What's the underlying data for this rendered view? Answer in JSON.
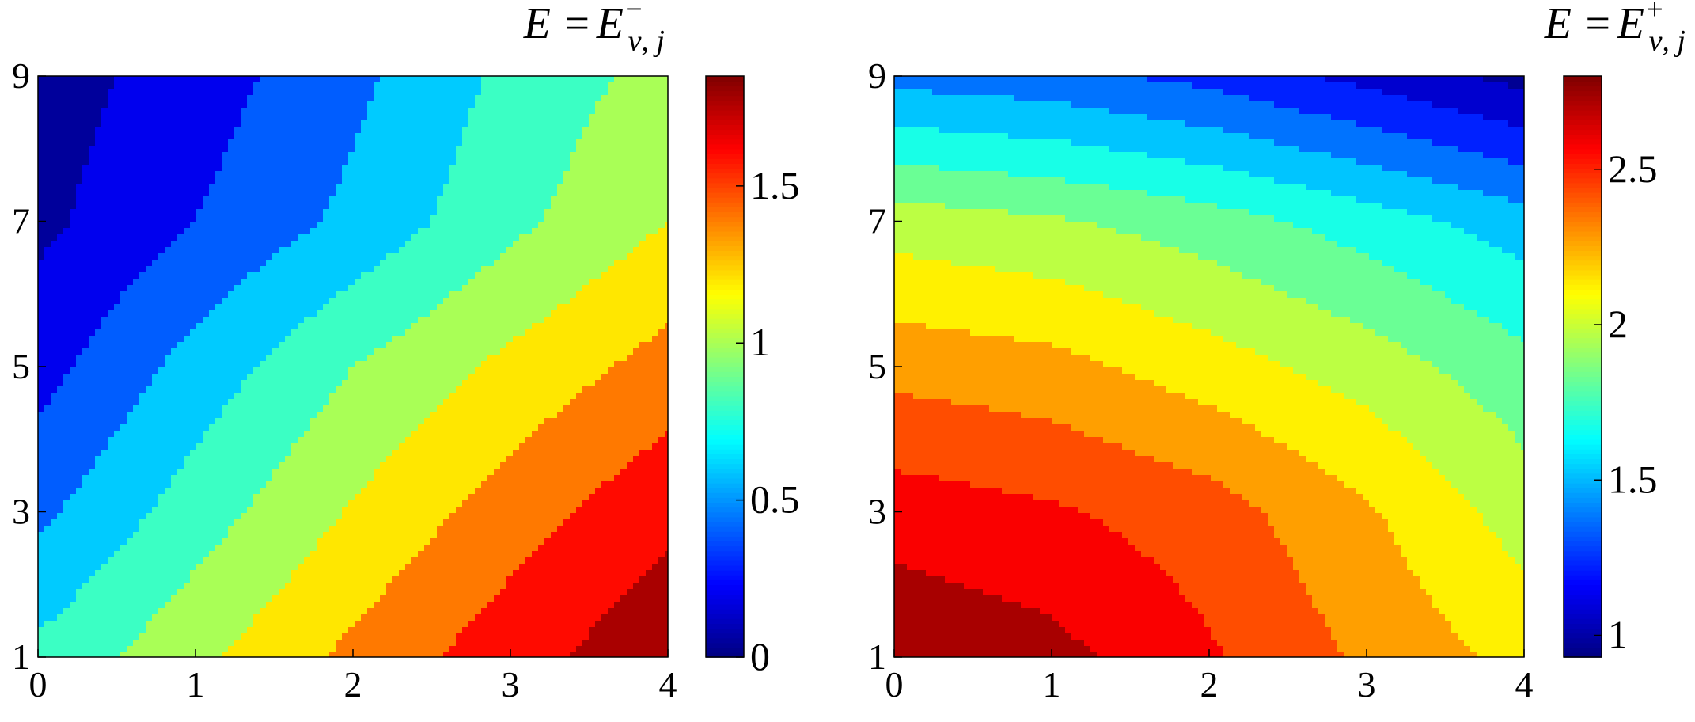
{
  "chart_data": [
    {
      "type": "contour",
      "title_prefix": "E =",
      "title_symbol": "E",
      "title_sup": "−",
      "title_sub": "ν, j",
      "x_ticks": [
        0,
        1,
        2,
        3,
        4
      ],
      "y_ticks": [
        1,
        3,
        5,
        7,
        9
      ],
      "xlim": [
        0,
        4
      ],
      "ylim": [
        1,
        9
      ],
      "x": [
        0,
        1,
        2,
        3,
        4
      ],
      "y": [
        1,
        3,
        5,
        7,
        9
      ],
      "z": [
        [
          0.75,
          1.05,
          1.35,
          1.62,
          1.85
        ],
        [
          0.45,
          0.8,
          1.12,
          1.4,
          1.65
        ],
        [
          0.22,
          0.58,
          0.9,
          1.15,
          1.38
        ],
        [
          0.05,
          0.3,
          0.55,
          0.85,
          1.1
        ],
        [
          0.0,
          0.2,
          0.45,
          0.75,
          0.98
        ]
      ],
      "levels": [
        0.1,
        0.3,
        0.5,
        0.7,
        0.9,
        1.1,
        1.3,
        1.5,
        1.7
      ],
      "colorbar": {
        "min": 0,
        "max": 1.85,
        "ticks": [
          0,
          0.5,
          1,
          1.5
        ],
        "tick_labels": [
          "0",
          "0.5",
          "1",
          "1.5"
        ]
      },
      "colormap": "jet"
    },
    {
      "type": "contour",
      "title_prefix": "E =",
      "title_symbol": "E",
      "title_sup": "+",
      "title_sub": "ν, j",
      "x_ticks": [
        0,
        1,
        2,
        3,
        4
      ],
      "y_ticks": [
        1,
        3,
        5,
        7,
        9
      ],
      "xlim": [
        0,
        4
      ],
      "ylim": [
        1,
        9
      ],
      "x": [
        0,
        1,
        2,
        3,
        4
      ],
      "y": [
        1,
        3,
        5,
        7,
        9
      ],
      "z": [
        [
          2.78,
          2.7,
          2.52,
          2.32,
          2.15
        ],
        [
          2.58,
          2.52,
          2.42,
          2.22,
          1.98
        ],
        [
          2.3,
          2.25,
          2.12,
          1.98,
          1.8
        ],
        [
          1.98,
          1.92,
          1.82,
          1.68,
          1.52
        ],
        [
          1.4,
          1.35,
          1.25,
          1.1,
          0.95
        ]
      ],
      "levels": [
        1.0,
        1.15,
        1.3,
        1.45,
        1.6,
        1.75,
        1.9,
        2.05,
        2.2,
        2.35,
        2.5,
        2.65,
        2.8
      ],
      "colorbar": {
        "min": 0.93,
        "max": 2.8,
        "ticks": [
          1,
          1.5,
          2,
          2.5
        ],
        "tick_labels": [
          "1",
          "1.5",
          "2",
          "2.5"
        ]
      },
      "colormap": "jet"
    }
  ]
}
